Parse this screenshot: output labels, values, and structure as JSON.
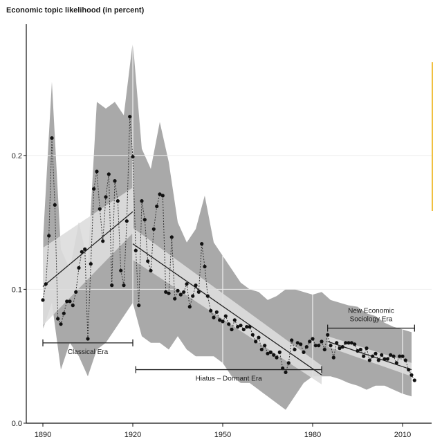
{
  "chart_data": {
    "type": "line",
    "title": "Economic topic likelihood (in percent)",
    "xlabel": "",
    "ylabel": "",
    "xlim": [
      1888,
      2015
    ],
    "ylim": [
      0,
      0.3
    ],
    "x_ticks": [
      1890,
      1920,
      1950,
      1980,
      2010
    ],
    "y_ticks": [
      0.0,
      0.1,
      0.2
    ],
    "y_tick_labels": [
      "0.0",
      "0.1",
      "0.2"
    ],
    "x_tick_labels": [
      "1890",
      "1920",
      "1950",
      "1980",
      "2010"
    ],
    "grid": true,
    "colors": {
      "band_dark": "#a9a9a9",
      "band_light": "#dddddd",
      "trend": "#222222",
      "points": "#111111"
    },
    "series": [
      {
        "name": "",
        "x": [
          1890,
          1891,
          1892,
          1893,
          1894,
          1895,
          1896,
          1897,
          1898,
          1899,
          1900,
          1901,
          1902,
          1903,
          1904,
          1905,
          1906,
          1907,
          1908,
          1909,
          1910,
          1911,
          1912,
          1913,
          1914,
          1915,
          1916,
          1917,
          1918,
          1919,
          1920,
          1921,
          1922,
          1923,
          1924,
          1925,
          1926,
          1927,
          1928,
          1929,
          1930,
          1931,
          1932,
          1933,
          1934,
          1935,
          1936,
          1937,
          1938,
          1939,
          1940,
          1941,
          1942,
          1943,
          1944,
          1945,
          1946,
          1947,
          1948,
          1949,
          1950,
          1951,
          1952,
          1953,
          1954,
          1955,
          1956,
          1957,
          1958,
          1959,
          1960,
          1961,
          1962,
          1963,
          1964,
          1965,
          1966,
          1967,
          1968,
          1969,
          1970,
          1971,
          1972,
          1973,
          1974,
          1975,
          1976,
          1977,
          1978,
          1979,
          1980,
          1981,
          1982,
          1983,
          1984,
          1985,
          1986,
          1987,
          1988,
          1989,
          1990,
          1991,
          1992,
          1993,
          1994,
          1995,
          1996,
          1997,
          1998,
          1999,
          2000,
          2001,
          2002,
          2003,
          2004,
          2005,
          2006,
          2007,
          2008,
          2009,
          2010,
          2011,
          2012,
          2013,
          2014
        ],
        "y": [
          0.092,
          0.104,
          0.14,
          0.213,
          0.163,
          0.078,
          0.074,
          0.082,
          0.091,
          0.091,
          0.088,
          0.098,
          0.116,
          0.128,
          0.13,
          0.063,
          0.119,
          0.175,
          0.188,
          0.16,
          0.136,
          0.169,
          0.186,
          0.103,
          0.181,
          0.166,
          0.114,
          0.103,
          0.151,
          0.229,
          0.199,
          0.129,
          0.088,
          0.166,
          0.152,
          0.121,
          0.114,
          0.145,
          0.162,
          0.171,
          0.17,
          0.098,
          0.097,
          0.139,
          0.093,
          0.099,
          0.096,
          0.098,
          0.104,
          0.087,
          0.095,
          0.103,
          0.098,
          0.134,
          0.117,
          0.095,
          0.084,
          0.079,
          0.083,
          0.077,
          0.076,
          0.08,
          0.074,
          0.07,
          0.077,
          0.072,
          0.073,
          0.07,
          0.072,
          0.072,
          0.066,
          0.061,
          0.064,
          0.055,
          0.058,
          0.052,
          0.053,
          0.051,
          0.049,
          0.053,
          0.041,
          0.038,
          0.045,
          0.062,
          0.055,
          0.06,
          0.059,
          0.053,
          0.057,
          0.061,
          0.063,
          0.058,
          0.058,
          0.061,
          0.055,
          0.066,
          0.058,
          0.049,
          0.06,
          0.056,
          0.057,
          0.06,
          0.06,
          0.06,
          0.059,
          0.054,
          0.055,
          0.05,
          0.056,
          0.047,
          0.05,
          0.052,
          0.047,
          0.051,
          0.048,
          0.048,
          0.051,
          0.05,
          0.045,
          0.05,
          0.05,
          0.047,
          0.04,
          0.036,
          0.032
        ]
      }
    ],
    "trend_lines": [
      {
        "x": [
          1890,
          1920
        ],
        "y": [
          0.102,
          0.158
        ]
      },
      {
        "x": [
          1920,
          1983
        ],
        "y": [
          0.134,
          0.036
        ]
      },
      {
        "x": [
          1985,
          2013
        ],
        "y": [
          0.061,
          0.04
        ]
      }
    ],
    "confidence_bands_light": [
      {
        "x": [
          1890,
          1920
        ],
        "upper": [
          0.131,
          0.176
        ],
        "lower": [
          0.073,
          0.142
        ]
      },
      {
        "x": [
          1920,
          1983
        ],
        "upper": [
          0.146,
          0.043
        ],
        "lower": [
          0.122,
          0.029
        ]
      },
      {
        "x": [
          1985,
          2013
        ],
        "upper": [
          0.065,
          0.045
        ],
        "lower": [
          0.057,
          0.035
        ]
      }
    ],
    "variation_band": {
      "x": [
        1890,
        1893,
        1896,
        1899,
        1902,
        1905,
        1908,
        1911,
        1914,
        1917,
        1920,
        1923,
        1926,
        1929,
        1932,
        1935,
        1938,
        1941,
        1944,
        1947,
        1950,
        1953,
        1956,
        1959,
        1962,
        1965,
        1968,
        1971,
        1974,
        1977,
        1980,
        1983,
        1986,
        1989,
        1992,
        1995,
        1998,
        2001,
        2004,
        2007,
        2010,
        2013
      ],
      "upper": [
        0.135,
        0.255,
        0.13,
        0.115,
        0.15,
        0.12,
        0.24,
        0.235,
        0.24,
        0.23,
        0.285,
        0.205,
        0.19,
        0.225,
        0.195,
        0.15,
        0.135,
        0.145,
        0.17,
        0.135,
        0.125,
        0.115,
        0.105,
        0.1,
        0.098,
        0.092,
        0.095,
        0.1,
        0.1,
        0.098,
        0.096,
        0.098,
        0.092,
        0.09,
        0.088,
        0.087,
        0.082,
        0.08,
        0.075,
        0.072,
        0.07,
        0.068
      ],
      "lower": [
        0.07,
        0.09,
        0.04,
        0.06,
        0.05,
        0.035,
        0.055,
        0.06,
        0.07,
        0.08,
        0.09,
        0.065,
        0.06,
        0.06,
        0.055,
        0.065,
        0.055,
        0.05,
        0.05,
        0.05,
        0.045,
        0.035,
        0.03,
        0.03,
        0.025,
        0.02,
        0.015,
        0.01,
        0.02,
        0.03,
        0.035,
        0.035,
        0.035,
        0.033,
        0.03,
        0.028,
        0.025,
        0.028,
        0.028,
        0.025,
        0.022,
        0.02
      ]
    },
    "eras": [
      {
        "label": "Classical Era",
        "x_start": 1890,
        "x_end": 1920,
        "y": 0.06
      },
      {
        "label": "Hiatus – Dormant Era",
        "x_start": 1921,
        "x_end": 1983,
        "y": 0.04
      },
      {
        "label": "New Economic Sociology Era",
        "lines": [
          "New Economic",
          "Sociology Era"
        ],
        "x_start": 1985,
        "x_end": 2014,
        "y": 0.071
      }
    ]
  }
}
